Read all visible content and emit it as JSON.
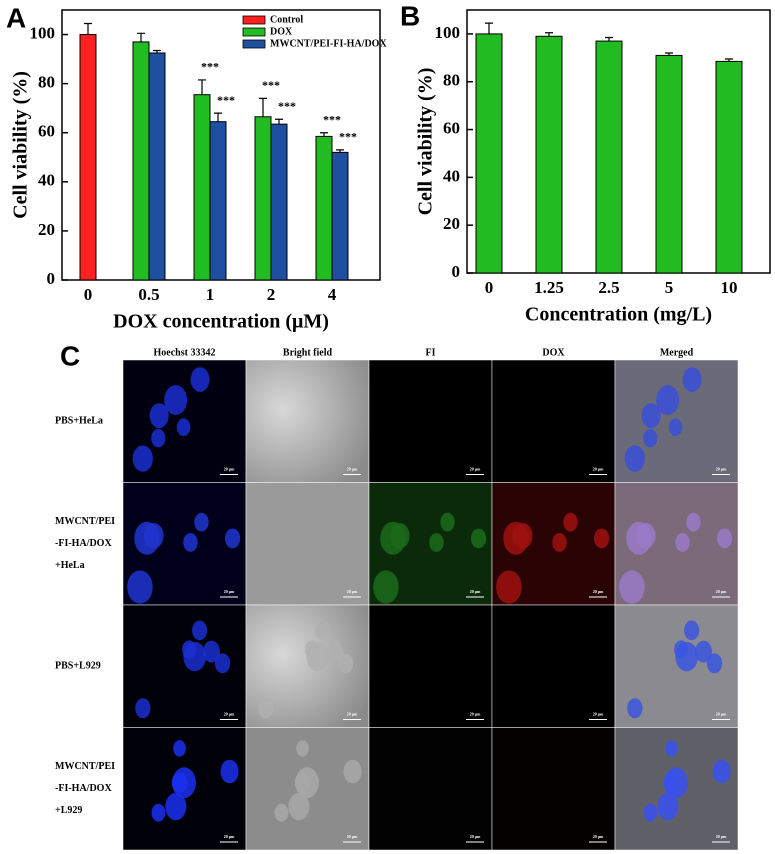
{
  "chart_data": [
    {
      "type": "bar",
      "panel_label": "A",
      "y_label": "Cell viability (%)",
      "x_label": "DOX concentration (μM)",
      "categories": [
        "0",
        "0.5",
        "1",
        "2",
        "4"
      ],
      "series": [
        {
          "name": "Control",
          "color": "#ff2020",
          "values": [
            100,
            null,
            null,
            null,
            null
          ],
          "errors": [
            4.5,
            null,
            null,
            null,
            null
          ],
          "significance": [
            null,
            null,
            null,
            null,
            null
          ]
        },
        {
          "name": "DOX",
          "color": "#22bb22",
          "values": [
            null,
            97,
            75.5,
            66.5,
            58.5
          ],
          "errors": [
            null,
            3.5,
            6,
            7.5,
            1.5
          ],
          "significance": [
            null,
            null,
            "***",
            "***",
            "***"
          ]
        },
        {
          "name": "MWCNT/PEI-FI-HA/DOX",
          "color": "#1f4fa0",
          "values": [
            null,
            92.5,
            64.5,
            63.5,
            52
          ],
          "errors": [
            null,
            1,
            3.5,
            2,
            1
          ],
          "significance": [
            null,
            null,
            "***",
            "***",
            "***"
          ]
        }
      ],
      "ylim": [
        0,
        110
      ],
      "yticks": [
        0,
        20,
        40,
        60,
        80,
        100
      ],
      "legend": "upper-right"
    },
    {
      "type": "bar",
      "panel_label": "B",
      "y_label": "Cell viability (%)",
      "x_label": "Concentration (mg/L)",
      "categories": [
        "0",
        "1.25",
        "2.5",
        "5",
        "10"
      ],
      "values": [
        100,
        99,
        97,
        91,
        88.5
      ],
      "errors": [
        4.5,
        1.5,
        1.5,
        1,
        1
      ],
      "color": "#22bb22",
      "ylim": [
        0,
        110
      ],
      "yticks": [
        0,
        20,
        40,
        60,
        80,
        100
      ]
    }
  ],
  "image_grid": {
    "panel_label": "C",
    "columns": [
      "Hoechst 33342",
      "Bright field",
      "FI",
      "DOX",
      "Merged"
    ],
    "rows": [
      [
        "PBS+HeLa"
      ],
      [
        "MWCNT/PEI",
        "-FI-HA/DOX",
        "+HeLa"
      ],
      [
        "PBS+L929"
      ],
      [
        "MWCNT/PEI",
        "-FI-HA/DOX",
        "+L929"
      ]
    ],
    "scale_bar": "20 μm"
  }
}
